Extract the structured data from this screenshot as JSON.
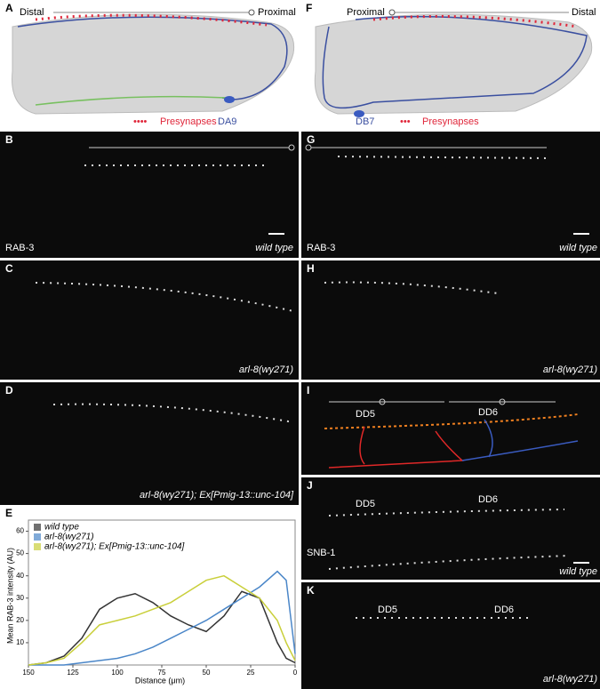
{
  "panels": {
    "A": {
      "label": "A",
      "distal": "Distal",
      "proximal": "Proximal",
      "presynapses": "Presynapses",
      "neuron": "DA9"
    },
    "B": {
      "label": "B",
      "marker": "RAB-3",
      "genotype": "wild type"
    },
    "C": {
      "label": "C",
      "genotype": "arl-8(wy271)"
    },
    "D": {
      "label": "D",
      "genotype": "arl-8(wy271); Ex[Pmig-13::unc-104]"
    },
    "F": {
      "label": "F",
      "proximal": "Proximal",
      "distal": "Distal",
      "neuron": "DB7",
      "presynapses": "Presynapses"
    },
    "G": {
      "label": "G",
      "marker": "RAB-3",
      "genotype": "wild type"
    },
    "H": {
      "label": "H",
      "genotype": "arl-8(wy271)"
    },
    "I": {
      "label": "I",
      "neuron1": "DD5",
      "neuron2": "DD6"
    },
    "J": {
      "label": "J",
      "marker": "SNB-1",
      "neuron1": "DD5",
      "neuron2": "DD6",
      "genotype": "wild type"
    },
    "K": {
      "label": "K",
      "neuron1": "DD5",
      "neuron2": "DD6",
      "genotype": "arl-8(wy271)"
    }
  },
  "chart_data": {
    "type": "line",
    "panel_label": "E",
    "x_label": "Distance (μm)",
    "y_label": "Mean RAB-3 intensity (AU)",
    "x": [
      150,
      140,
      130,
      120,
      110,
      100,
      90,
      80,
      70,
      60,
      50,
      40,
      30,
      20,
      10,
      5,
      0
    ],
    "series": [
      {
        "name": "wild type",
        "color": "#333333",
        "values": [
          0,
          1,
          4,
          12,
          25,
          30,
          32,
          28,
          22,
          18,
          15,
          22,
          33,
          30,
          10,
          3,
          1
        ]
      },
      {
        "name": "arl-8(wy271)",
        "color": "#4a86c8",
        "values": [
          0,
          0,
          0,
          1,
          2,
          3,
          5,
          8,
          12,
          16,
          20,
          25,
          30,
          35,
          42,
          38,
          5
        ]
      },
      {
        "name": "arl-8(wy271); Ex[Pmig-13::unc-104]",
        "color": "#c9cf3a",
        "values": [
          0,
          1,
          3,
          10,
          18,
          20,
          22,
          25,
          28,
          33,
          38,
          40,
          35,
          30,
          20,
          10,
          2
        ]
      }
    ],
    "xlim": [
      150,
      0
    ],
    "ylim": [
      0,
      65
    ],
    "xticks": [
      150,
      125,
      100,
      75,
      50,
      25,
      0
    ],
    "yticks": [
      10,
      20,
      30,
      40,
      50,
      60
    ]
  }
}
